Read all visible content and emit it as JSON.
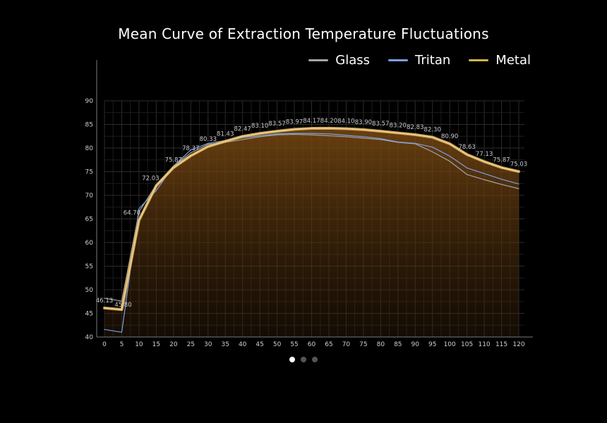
{
  "chart_data": {
    "type": "line",
    "title": "Mean Curve of Extraction  Temperature Fluctuations",
    "x": [
      0,
      5,
      10,
      15,
      20,
      25,
      30,
      35,
      40,
      45,
      50,
      55,
      60,
      65,
      70,
      75,
      80,
      85,
      90,
      95,
      100,
      105,
      110,
      115,
      120
    ],
    "xticks": [
      "0",
      "5",
      "10",
      "15",
      "20",
      "25",
      "30",
      "35",
      "40",
      "45",
      "50",
      "55",
      "60",
      "65",
      "70",
      "75",
      "80",
      "85",
      "90",
      "95",
      "100",
      "105",
      "110",
      "115",
      "120"
    ],
    "yticks": [
      "40",
      "45",
      "50",
      "55",
      "60",
      "65",
      "70",
      "75",
      "80",
      "85",
      "90"
    ],
    "ylim": [
      40,
      90
    ],
    "xlim": [
      0,
      120
    ],
    "grid": true,
    "legend_position": "top-right",
    "series": [
      {
        "name": "Glass",
        "color": "#a5a5a5",
        "values": [
          48.2,
          47.6,
          66.5,
          72.2,
          76.2,
          79.0,
          80.8,
          81.2,
          81.8,
          82.4,
          82.8,
          82.9,
          82.8,
          82.6,
          82.4,
          82.1,
          81.8,
          81.2,
          80.9,
          79.2,
          77.2,
          74.4,
          73.3,
          72.3,
          71.4
        ]
      },
      {
        "name": "Tritan",
        "color": "#7b9fe3",
        "values": [
          41.6,
          41.0,
          67.2,
          71.0,
          76.2,
          79.6,
          81.0,
          81.6,
          82.2,
          82.6,
          83.0,
          83.1,
          83.1,
          83.0,
          82.7,
          82.4,
          82.0,
          81.3,
          81.0,
          80.2,
          78.3,
          75.8,
          74.6,
          73.4,
          72.4
        ]
      },
      {
        "name": "Metal",
        "color": "#d2b34c",
        "values": [
          46.13,
          45.8,
          64.7,
          72.03,
          75.87,
          78.37,
          80.33,
          81.43,
          82.47,
          83.1,
          83.57,
          83.97,
          84.17,
          84.2,
          84.1,
          83.9,
          83.57,
          83.2,
          82.83,
          82.3,
          80.9,
          78.63,
          77.13,
          75.87,
          75.03
        ]
      }
    ],
    "data_labels": [
      "46.13",
      "45.80",
      "64.70",
      "72.03",
      "75.87",
      "78.37",
      "80.33",
      "81.43",
      "82.47",
      "83.10",
      "83.57",
      "83.97",
      "84.17",
      "84.20",
      "84.10",
      "83.90",
      "83.57",
      "83.20",
      "82.83",
      "82.30",
      "80.90",
      "78.63",
      "77.13",
      "75.87",
      "75.03"
    ],
    "highlight_color": "#f5c9a0",
    "fill_color": "#6a3f0e"
  },
  "pagination": {
    "count": 3,
    "active": 0
  }
}
